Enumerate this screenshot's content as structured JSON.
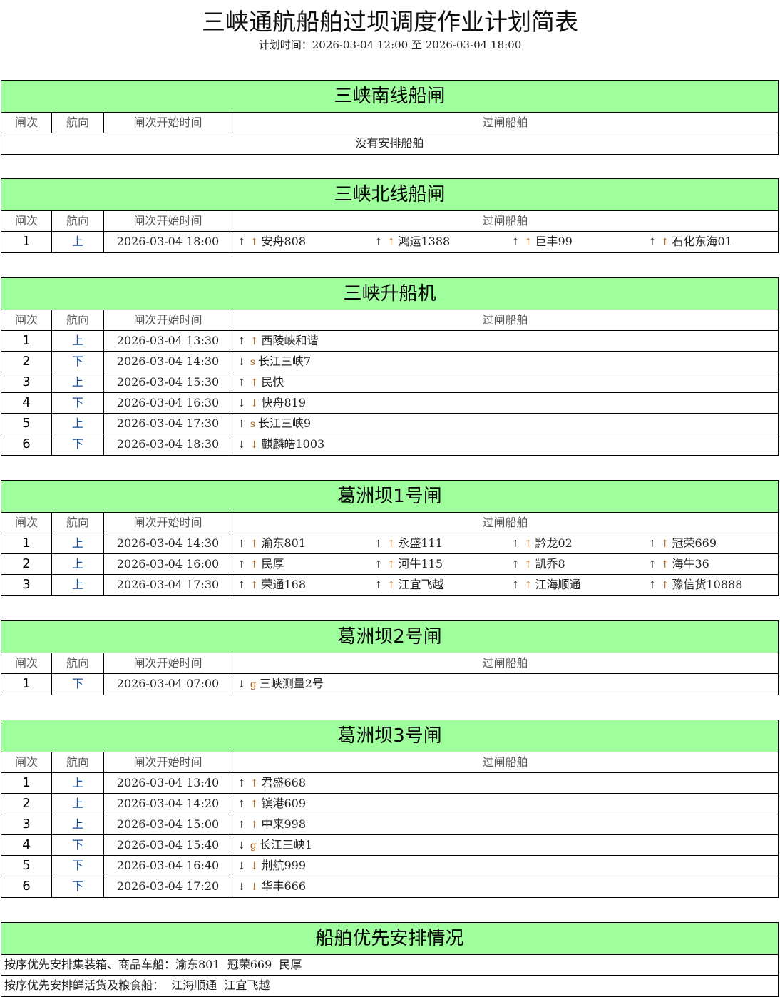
{
  "title": "三峡通航船舶过坝调度作业计划简表",
  "plan_time": "计划时间：2026-03-04 12:00 至 2026-03-04 18:00",
  "headers": [
    "闸次",
    "航向",
    "闸次开始时间",
    "过闸船舶"
  ],
  "colors": {
    "section_header": "#9eff9c",
    "direction": "#1a4fa0"
  },
  "sections": [
    {
      "name": "三峡南线船闸",
      "empty": "没有安排船舶",
      "rows": []
    },
    {
      "name": "三峡北线船闸",
      "rows": [
        {
          "no": "1",
          "dir": "上",
          "time": "2026-03-04 18:00",
          "ships": [
            {
              "a": "↑",
              "b": "↑",
              "name": "安舟808"
            },
            {
              "a": "↑",
              "b": "↑",
              "name": "鸿运1388"
            },
            {
              "a": "↑",
              "b": "↑",
              "name": "巨丰99"
            },
            {
              "a": "↑",
              "b": "↑",
              "name": "石化东海01"
            }
          ]
        }
      ]
    },
    {
      "name": "三峡升船机",
      "rows": [
        {
          "no": "1",
          "dir": "上",
          "time": "2026-03-04 13:30",
          "ships": [
            {
              "a": "↑",
              "b": "↑",
              "name": "西陵峡和谐"
            }
          ]
        },
        {
          "no": "2",
          "dir": "下",
          "time": "2026-03-04 14:30",
          "ships": [
            {
              "a": "↓",
              "b": "s",
              "name": "长江三峡7"
            }
          ]
        },
        {
          "no": "3",
          "dir": "上",
          "time": "2026-03-04 15:30",
          "ships": [
            {
              "a": "↑",
              "b": "↑",
              "name": "民快"
            }
          ]
        },
        {
          "no": "4",
          "dir": "下",
          "time": "2026-03-04 16:30",
          "ships": [
            {
              "a": "↓",
              "b": "↓",
              "name": "快舟819"
            }
          ]
        },
        {
          "no": "5",
          "dir": "上",
          "time": "2026-03-04 17:30",
          "ships": [
            {
              "a": "↑",
              "b": "s",
              "name": "长江三峡9"
            }
          ]
        },
        {
          "no": "6",
          "dir": "下",
          "time": "2026-03-04 18:30",
          "ships": [
            {
              "a": "↓",
              "b": "↓",
              "name": "麒麟皓1003"
            }
          ]
        }
      ]
    },
    {
      "name": "葛洲坝1号闸",
      "rows": [
        {
          "no": "1",
          "dir": "上",
          "time": "2026-03-04 14:30",
          "ships": [
            {
              "a": "↑",
              "b": "↑",
              "name": "渝东801"
            },
            {
              "a": "↑",
              "b": "↑",
              "name": "永盛111"
            },
            {
              "a": "↑",
              "b": "↑",
              "name": "黔龙02"
            },
            {
              "a": "↑",
              "b": "↑",
              "name": "冠荣669"
            }
          ]
        },
        {
          "no": "2",
          "dir": "上",
          "time": "2026-03-04 16:00",
          "ships": [
            {
              "a": "↑",
              "b": "↑",
              "name": "民厚"
            },
            {
              "a": "↑",
              "b": "↑",
              "name": "河牛115"
            },
            {
              "a": "↑",
              "b": "↑",
              "name": "凯乔8"
            },
            {
              "a": "↑",
              "b": "↑",
              "name": "海牛36"
            }
          ]
        },
        {
          "no": "3",
          "dir": "上",
          "time": "2026-03-04 17:30",
          "ships": [
            {
              "a": "↑",
              "b": "↑",
              "name": "荣通168"
            },
            {
              "a": "↑",
              "b": "↑",
              "name": "江宜飞越"
            },
            {
              "a": "↑",
              "b": "↑",
              "name": "江海顺通"
            },
            {
              "a": "↑",
              "b": "↑",
              "name": "豫信货10888"
            }
          ]
        }
      ]
    },
    {
      "name": "葛洲坝2号闸",
      "rows": [
        {
          "no": "1",
          "dir": "下",
          "time": "2026-03-04 07:00",
          "ships": [
            {
              "a": "↓",
              "b": "g",
              "name": "三峡测量2号"
            }
          ]
        }
      ]
    },
    {
      "name": "葛洲坝3号闸",
      "rows": [
        {
          "no": "1",
          "dir": "上",
          "time": "2026-03-04 13:40",
          "ships": [
            {
              "a": "↑",
              "b": "↑",
              "name": "君盛668"
            }
          ]
        },
        {
          "no": "2",
          "dir": "上",
          "time": "2026-03-04 14:20",
          "ships": [
            {
              "a": "↑",
              "b": "↑",
              "name": "镔港609"
            }
          ]
        },
        {
          "no": "3",
          "dir": "上",
          "time": "2026-03-04 15:00",
          "ships": [
            {
              "a": "↑",
              "b": "↑",
              "name": "中来998"
            }
          ]
        },
        {
          "no": "4",
          "dir": "下",
          "time": "2026-03-04 15:40",
          "ships": [
            {
              "a": "↓",
              "b": "g",
              "name": "长江三峡1"
            }
          ]
        },
        {
          "no": "5",
          "dir": "下",
          "time": "2026-03-04 16:40",
          "ships": [
            {
              "a": "↓",
              "b": "↓",
              "name": "荆航999"
            }
          ]
        },
        {
          "no": "6",
          "dir": "下",
          "time": "2026-03-04 17:20",
          "ships": [
            {
              "a": "↓",
              "b": "↓",
              "name": "华丰666"
            }
          ]
        }
      ]
    }
  ],
  "priority": {
    "title": "船舶优先安排情况",
    "lines": [
      "按序优先安排集装箱、商品车船：渝东801  冠荣669  民厚",
      "按序优先安排鲜活货及粮食船：  江海顺通  江宜飞越"
    ]
  }
}
